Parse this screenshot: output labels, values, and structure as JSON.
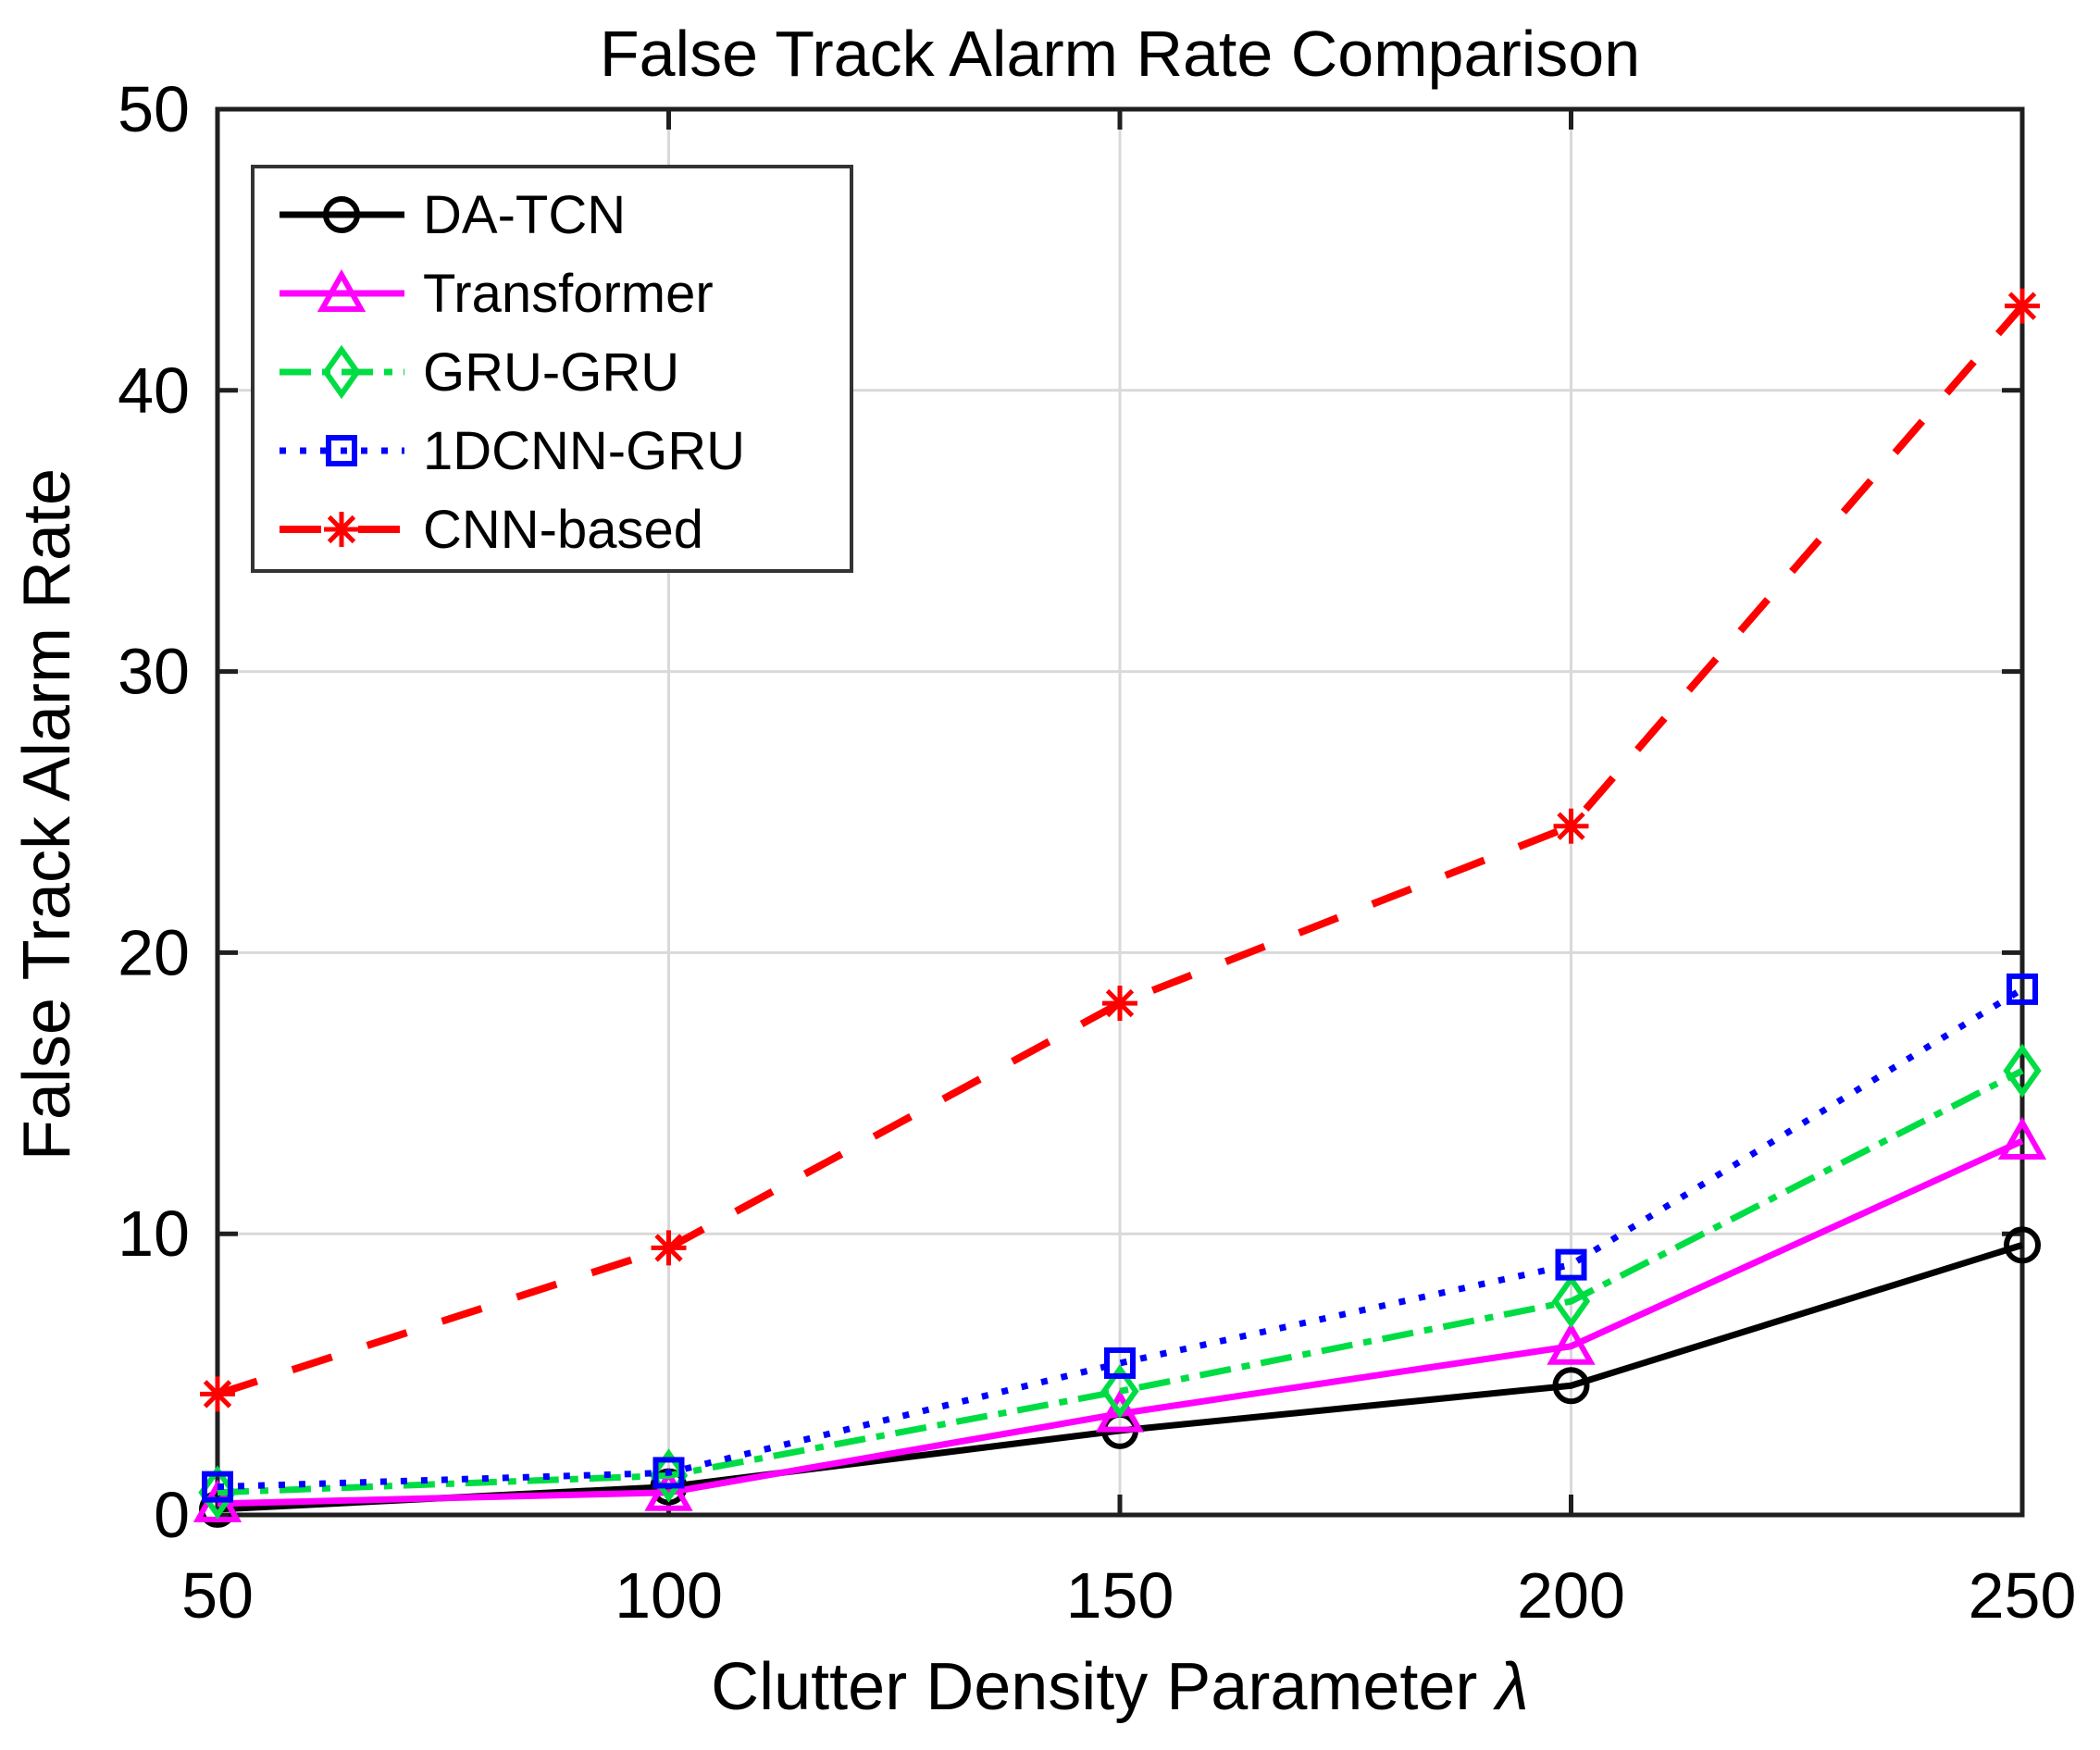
{
  "chart_data": {
    "type": "line",
    "title": "False Track Alarm Rate Comparison",
    "xlabel": "Clutter Density Parameter λ",
    "ylabel": "False Track Alarm Rate",
    "x": [
      50,
      100,
      150,
      200,
      250
    ],
    "xlim": [
      50,
      250
    ],
    "ylim": [
      0,
      50
    ],
    "xticks": [
      50,
      100,
      150,
      200,
      250
    ],
    "yticks": [
      0,
      10,
      20,
      30,
      40,
      50
    ],
    "grid": true,
    "legend_position": "top-left",
    "series": [
      {
        "name": "DA-TCN",
        "color": "#000000",
        "line_style": "solid",
        "marker": "circle",
        "values": [
          0.2,
          1.0,
          3.0,
          4.6,
          9.6
        ]
      },
      {
        "name": "Transformer",
        "color": "#ff00ff",
        "line_style": "solid",
        "marker": "triangle",
        "values": [
          0.4,
          0.8,
          3.6,
          6.0,
          13.3
        ]
      },
      {
        "name": "GRU-GRU",
        "color": "#00dd44",
        "line_style": "dashdot",
        "marker": "diamond",
        "values": [
          0.8,
          1.4,
          4.4,
          7.6,
          15.8
        ]
      },
      {
        "name": "1DCNN-GRU",
        "color": "#0000ff",
        "line_style": "dotted",
        "marker": "square",
        "values": [
          1.0,
          1.5,
          5.4,
          8.9,
          18.7
        ]
      },
      {
        "name": "CNN-based",
        "color": "#ff0000",
        "line_style": "dashed",
        "marker": "asterisk",
        "values": [
          4.3,
          9.5,
          18.2,
          24.5,
          43.0
        ]
      }
    ],
    "colors": {
      "background": "#ffffff",
      "grid": "#d9d9d9",
      "axis": "#1f1f1f",
      "text": "#000000"
    }
  },
  "labels": {
    "title": "False Track Alarm Rate Comparison",
    "ylabel": "False Track Alarm Rate",
    "xlabel_prefix": "Clutter Density Parameter ",
    "xlabel_symbol": "λ"
  }
}
